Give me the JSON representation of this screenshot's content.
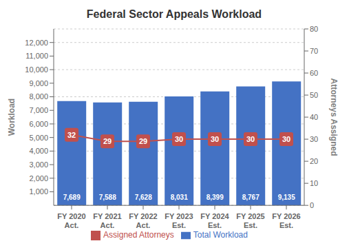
{
  "chart_data": {
    "type": "bar",
    "title": "Federal Sector Appeals Workload",
    "categories": [
      "FY 2020\nAct.",
      "FY 2021\nAct.",
      "FY 2022\nAct.",
      "FY 2023\nEst.",
      "FY 2024\nEst.",
      "FY 2025\nEst.",
      "FY 2026\nEst."
    ],
    "series": [
      {
        "name": "Total Workload",
        "type": "bar",
        "color": "#4472C4",
        "values": [
          7689,
          7588,
          7628,
          8031,
          8399,
          8767,
          9135
        ],
        "value_labels": [
          "7,689",
          "7,588",
          "7,628",
          "8,031",
          "8,399",
          "8,767",
          "9,135"
        ]
      },
      {
        "name": "Assigned Attorneys",
        "type": "line",
        "axis": "y2",
        "color": "#C0504D",
        "marker": "square",
        "values": [
          32,
          29,
          29,
          30,
          30,
          30,
          30
        ]
      }
    ],
    "ylabel": "Workload",
    "y2label": "Attorneys Assigned",
    "ylim": [
      0,
      13000
    ],
    "yticks": [
      {
        "value": 1000,
        "label": "1,000"
      },
      {
        "value": 2000,
        "label": "2,000"
      },
      {
        "value": 3000,
        "label": "3,000"
      },
      {
        "value": 4000,
        "label": "4,000"
      },
      {
        "value": 5000,
        "label": "5,000"
      },
      {
        "value": 6000,
        "label": "6,000"
      },
      {
        "value": 7000,
        "label": "7,000"
      },
      {
        "value": 8000,
        "label": "8,000"
      },
      {
        "value": 9000,
        "label": "9,000"
      },
      {
        "value": 10000,
        "label": "10,000"
      },
      {
        "value": 11000,
        "label": "11,000"
      },
      {
        "value": 12000,
        "label": "12,000"
      }
    ],
    "y2lim": [
      0,
      80
    ],
    "y2ticks": [
      0,
      10,
      20,
      30,
      40,
      50,
      60,
      70,
      80
    ],
    "grid": true,
    "legend": "bottom",
    "data_labels": true
  }
}
